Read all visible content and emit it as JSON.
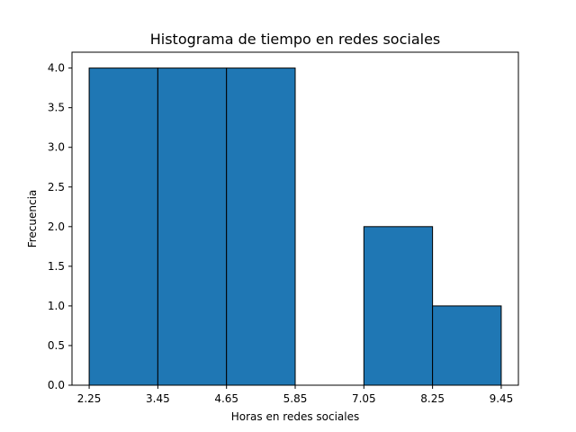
{
  "chart_data": {
    "type": "bar",
    "title": "Histograma de tiempo en redes sociales",
    "xlabel": "Horas en redes sociales",
    "ylabel": "Frecuencia",
    "bin_edges": [
      2.25,
      3.45,
      4.65,
      5.85,
      7.05,
      8.25,
      9.45
    ],
    "values": [
      4,
      4,
      4,
      0,
      2,
      1
    ],
    "xticks": [
      "2.25",
      "3.45",
      "4.65",
      "5.85",
      "7.05",
      "8.25",
      "9.45"
    ],
    "yticks": [
      "0.0",
      "0.5",
      "1.0",
      "1.5",
      "2.0",
      "2.5",
      "3.0",
      "3.5",
      "4.0"
    ],
    "ylim": [
      0,
      4.2
    ],
    "xlim": [
      1.95,
      9.75
    ],
    "grid": false,
    "bar_color": "#1f77b4",
    "edge_color": "#000000"
  }
}
